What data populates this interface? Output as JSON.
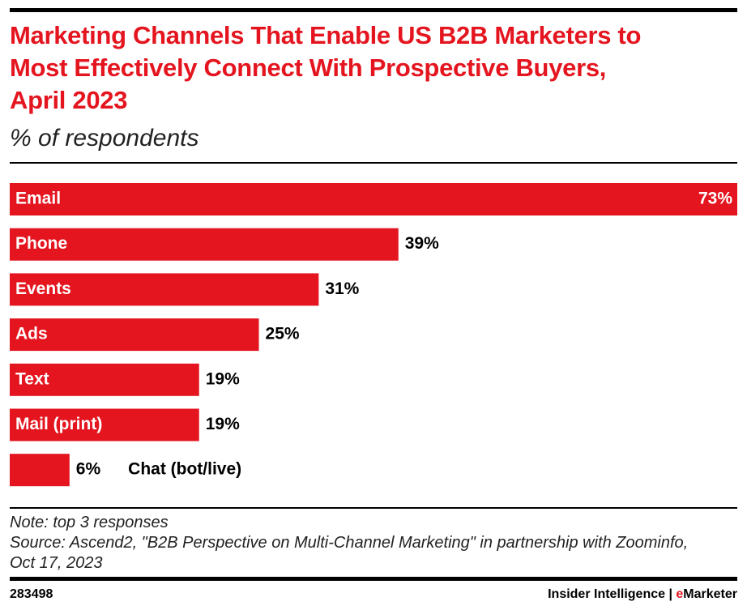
{
  "chart_data": {
    "type": "hbar",
    "title": "Marketing Channels That Enable US B2B Marketers to Most Effectively Connect With Prospective Buyers, April 2023",
    "subtitle": "% of respondents",
    "categories": [
      "Email",
      "Phone",
      "Events",
      "Ads",
      "Text",
      "Mail (print)",
      "Chat (bot/live)"
    ],
    "values": [
      73,
      39,
      31,
      25,
      19,
      19,
      6
    ],
    "value_labels": [
      "73%",
      "39%",
      "31%",
      "25%",
      "19%",
      "19%",
      "6%"
    ],
    "color": "#e4151f",
    "xlim": [
      0,
      73
    ]
  },
  "footer": {
    "note": "Note: top 3 responses",
    "source": "Source: Ascend2, \"B2B Perspective on Multi-Channel Marketing\" in partnership with Zoominfo, Oct 17, 2023",
    "id": "283498",
    "brand": [
      "Insider Intelligence | ",
      "e",
      "Marketer"
    ]
  }
}
